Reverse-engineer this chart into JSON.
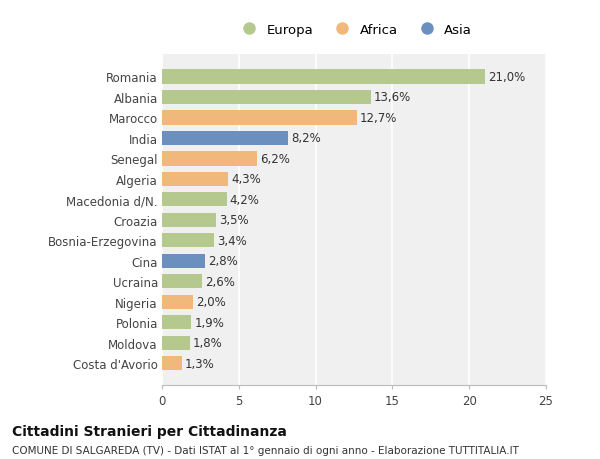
{
  "categories": [
    "Romania",
    "Albania",
    "Marocco",
    "India",
    "Senegal",
    "Algeria",
    "Macedonia d/N.",
    "Croazia",
    "Bosnia-Erzegovina",
    "Cina",
    "Ucraina",
    "Nigeria",
    "Polonia",
    "Moldova",
    "Costa d'Avorio"
  ],
  "values": [
    21.0,
    13.6,
    12.7,
    8.2,
    6.2,
    4.3,
    4.2,
    3.5,
    3.4,
    2.8,
    2.6,
    2.0,
    1.9,
    1.8,
    1.3
  ],
  "continent": [
    "Europa",
    "Europa",
    "Africa",
    "Asia",
    "Africa",
    "Africa",
    "Europa",
    "Europa",
    "Europa",
    "Asia",
    "Europa",
    "Africa",
    "Europa",
    "Europa",
    "Africa"
  ],
  "colors": {
    "Europa": "#b5c98e",
    "Africa": "#f0b87a",
    "Asia": "#6b8fbe"
  },
  "xlim": [
    0,
    25
  ],
  "xticks": [
    0,
    5,
    10,
    15,
    20,
    25
  ],
  "title": "Cittadini Stranieri per Cittadinanza",
  "subtitle": "COMUNE DI SALGAREDA (TV) - Dati ISTAT al 1° gennaio di ogni anno - Elaborazione TUTTITALIA.IT",
  "background_color": "#ffffff",
  "plot_background": "#f0f0f0",
  "grid_color": "#ffffff",
  "bar_height": 0.7,
  "label_fontsize": 8.5,
  "tick_fontsize": 8.5,
  "title_fontsize": 10,
  "subtitle_fontsize": 7.5
}
